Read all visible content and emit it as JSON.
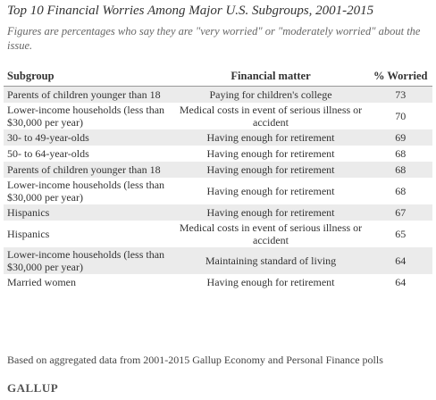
{
  "header": {
    "title": "Top 10 Financial Worries Among Major U.S. Subgroups, 2001-2015",
    "subtitle": "Figures are percentages who say they are \"very worried\" or \"moderately worried\" about the issue."
  },
  "table": {
    "columns": [
      "Subgroup",
      "Financial matter",
      "% Worried"
    ],
    "rows": [
      [
        "Parents of children younger than 18",
        "Paying for children's college",
        73
      ],
      [
        "Lower-income households (less than $30,000 per year)",
        "Medical costs in event of serious illness or accident",
        70
      ],
      [
        "30- to 49-year-olds",
        "Having enough for retirement",
        69
      ],
      [
        "50- to 64-year-olds",
        "Having enough for retirement",
        68
      ],
      [
        "Parents of children younger than 18",
        "Having enough for retirement",
        68
      ],
      [
        "Lower-income households (less than $30,000 per year)",
        "Having enough for retirement",
        68
      ],
      [
        "Hispanics",
        "Having enough for retirement",
        67
      ],
      [
        "Hispanics",
        "Medical costs in event of serious illness or accident",
        65
      ],
      [
        "Lower-income households (less than $30,000 per year)",
        "Maintaining standard of living",
        64
      ],
      [
        "Married women",
        "Having enough for retirement",
        64
      ]
    ]
  },
  "footer": {
    "note": "Based on aggregated data from 2001-2015 Gallup Economy and Personal Finance polls",
    "logo": "GALLUP"
  }
}
